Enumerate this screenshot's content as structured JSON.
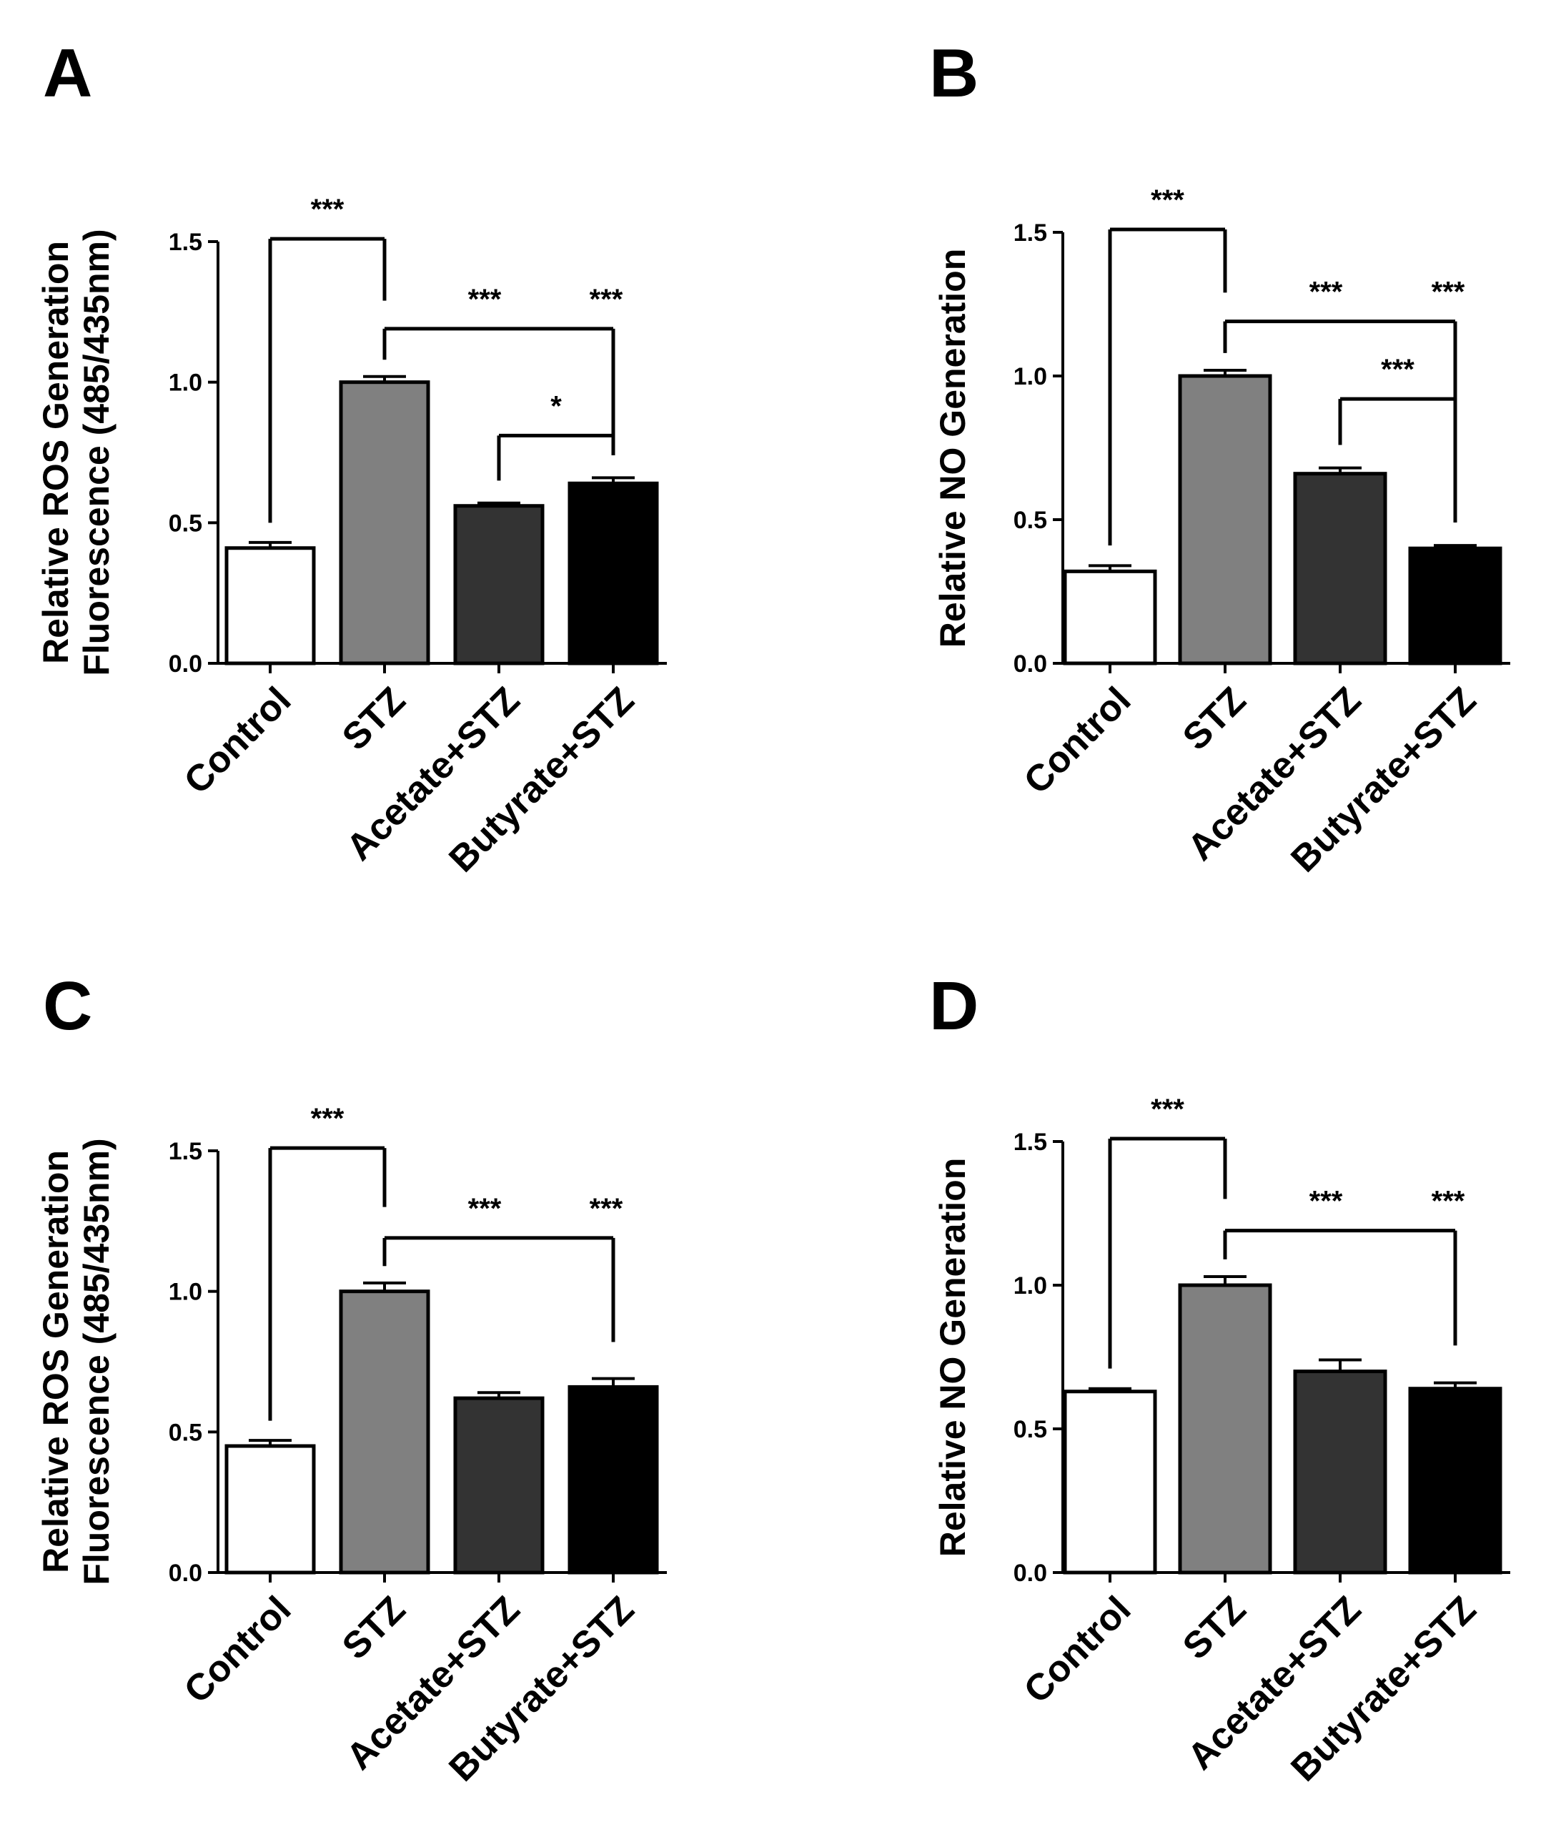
{
  "chart_data": [
    {
      "panel": "A",
      "type": "bar",
      "ylabel": [
        "Relative ROS Generation",
        "Fluorescence (485/435nm)"
      ],
      "categories": [
        "Control",
        "STZ",
        "Acetate+STZ",
        "Butyrate+STZ"
      ],
      "values": [
        0.41,
        1.0,
        0.56,
        0.64
      ],
      "errors": [
        0.02,
        0.02,
        0.01,
        0.02
      ],
      "colors": [
        "#ffffff",
        "#808080",
        "#333333",
        "#000000"
      ],
      "ylim": [
        0,
        1.5
      ],
      "yticks": [
        "0.0",
        "0.5",
        "1.0",
        "1.5"
      ],
      "comparisons": [
        {
          "from": 0,
          "to": 1,
          "label": "***"
        },
        {
          "from": 1,
          "to": 2,
          "label": "***"
        },
        {
          "from": 1,
          "to": 3,
          "label": "***"
        },
        {
          "from": 2,
          "to": 3,
          "label": "*"
        }
      ]
    },
    {
      "panel": "B",
      "type": "bar",
      "ylabel": [
        "Relative NO Generation"
      ],
      "categories": [
        "Control",
        "STZ",
        "Acetate+STZ",
        "Butyrate+STZ"
      ],
      "values": [
        0.32,
        1.0,
        0.66,
        0.4
      ],
      "errors": [
        0.02,
        0.02,
        0.02,
        0.01
      ],
      "colors": [
        "#ffffff",
        "#808080",
        "#333333",
        "#000000"
      ],
      "ylim": [
        0,
        1.5
      ],
      "yticks": [
        "0.0",
        "0.5",
        "1.0",
        "1.5"
      ],
      "comparisons": [
        {
          "from": 0,
          "to": 1,
          "label": "***"
        },
        {
          "from": 1,
          "to": 2,
          "label": "***"
        },
        {
          "from": 1,
          "to": 3,
          "label": "***"
        },
        {
          "from": 2,
          "to": 3,
          "label": "***"
        }
      ]
    },
    {
      "panel": "C",
      "type": "bar",
      "ylabel": [
        "Relative ROS Generation",
        "Fluorescence (485/435nm)"
      ],
      "categories": [
        "Control",
        "STZ",
        "Acetate+STZ",
        "Butyrate+STZ"
      ],
      "values": [
        0.45,
        1.0,
        0.62,
        0.66
      ],
      "errors": [
        0.02,
        0.03,
        0.02,
        0.03
      ],
      "colors": [
        "#ffffff",
        "#808080",
        "#333333",
        "#000000"
      ],
      "ylim": [
        0,
        1.5
      ],
      "yticks": [
        "0.0",
        "0.5",
        "1.0",
        "1.5"
      ],
      "comparisons": [
        {
          "from": 0,
          "to": 1,
          "label": "***"
        },
        {
          "from": 1,
          "to": 2,
          "label": "***"
        },
        {
          "from": 1,
          "to": 3,
          "label": "***"
        }
      ]
    },
    {
      "panel": "D",
      "type": "bar",
      "ylabel": [
        "Relative NO Generation"
      ],
      "categories": [
        "Control",
        "STZ",
        "Acetate+STZ",
        "Butyrate+STZ"
      ],
      "values": [
        0.63,
        1.0,
        0.7,
        0.64
      ],
      "errors": [
        0.01,
        0.03,
        0.04,
        0.02
      ],
      "colors": [
        "#ffffff",
        "#808080",
        "#333333",
        "#000000"
      ],
      "ylim": [
        0,
        1.5
      ],
      "yticks": [
        "0.0",
        "0.5",
        "1.0",
        "1.5"
      ],
      "comparisons": [
        {
          "from": 0,
          "to": 1,
          "label": "***"
        },
        {
          "from": 1,
          "to": 2,
          "label": "***"
        },
        {
          "from": 1,
          "to": 3,
          "label": "***"
        }
      ]
    }
  ]
}
